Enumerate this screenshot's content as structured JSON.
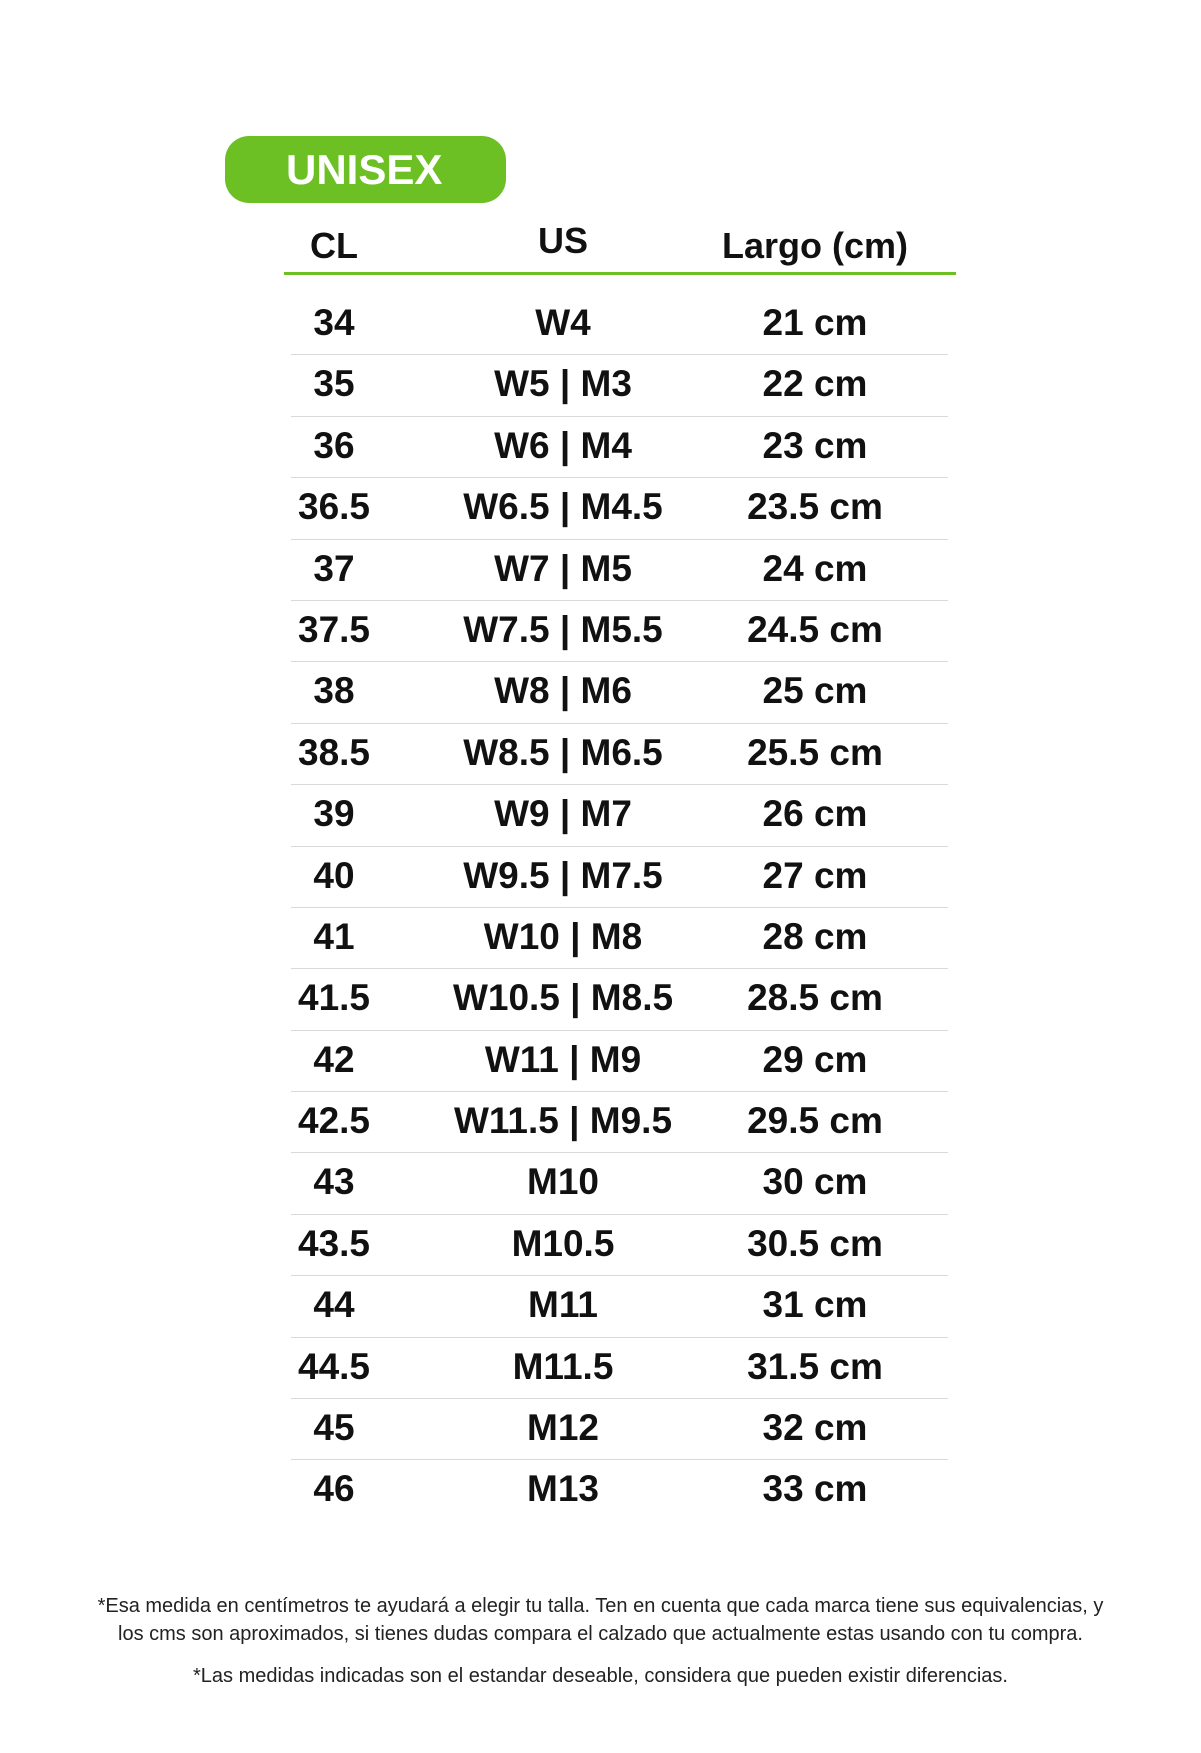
{
  "badge": {
    "label": "UNISEX",
    "color": "#6cc024"
  },
  "table": {
    "headers": [
      "CL",
      "US",
      "Largo (cm)"
    ],
    "rows": [
      [
        "34",
        "W4",
        "21 cm"
      ],
      [
        "35",
        "W5 | M3",
        "22 cm"
      ],
      [
        "36",
        "W6 | M4",
        "23 cm"
      ],
      [
        "36.5",
        "W6.5 | M4.5",
        "23.5 cm"
      ],
      [
        "37",
        "W7 | M5",
        "24 cm"
      ],
      [
        "37.5",
        "W7.5 | M5.5",
        "24.5 cm"
      ],
      [
        "38",
        "W8 | M6",
        "25 cm"
      ],
      [
        "38.5",
        "W8.5 | M6.5",
        "25.5 cm"
      ],
      [
        "39",
        "W9 | M7",
        "26 cm"
      ],
      [
        "40",
        "W9.5 | M7.5",
        "27 cm"
      ],
      [
        "41",
        "W10 | M8",
        "28 cm"
      ],
      [
        "41.5",
        "W10.5 | M8.5",
        "28.5 cm"
      ],
      [
        "42",
        "W11 | M9",
        "29 cm"
      ],
      [
        "42.5",
        "W11.5 | M9.5",
        "29.5 cm"
      ],
      [
        "43",
        "M10",
        "30 cm"
      ],
      [
        "43.5",
        "M10.5",
        "30.5 cm"
      ],
      [
        "44",
        "M11",
        "31 cm"
      ],
      [
        "44.5",
        "M11.5",
        "31.5 cm"
      ],
      [
        "45",
        "M12",
        "32 cm"
      ],
      [
        "46",
        "M13",
        "33 cm"
      ]
    ]
  },
  "footer": {
    "note1_line1": "*Esa medida en centímetros te ayudará a elegir tu talla. Ten en cuenta que cada marca tiene sus equivalencias, y",
    "note1_line2": "los cms son aproximados, si tienes dudas compara el calzado que actualmente estas usando con tu compra.",
    "note2": "*Las medidas indicadas son el estandar deseable, considera que pueden existir diferencias."
  }
}
